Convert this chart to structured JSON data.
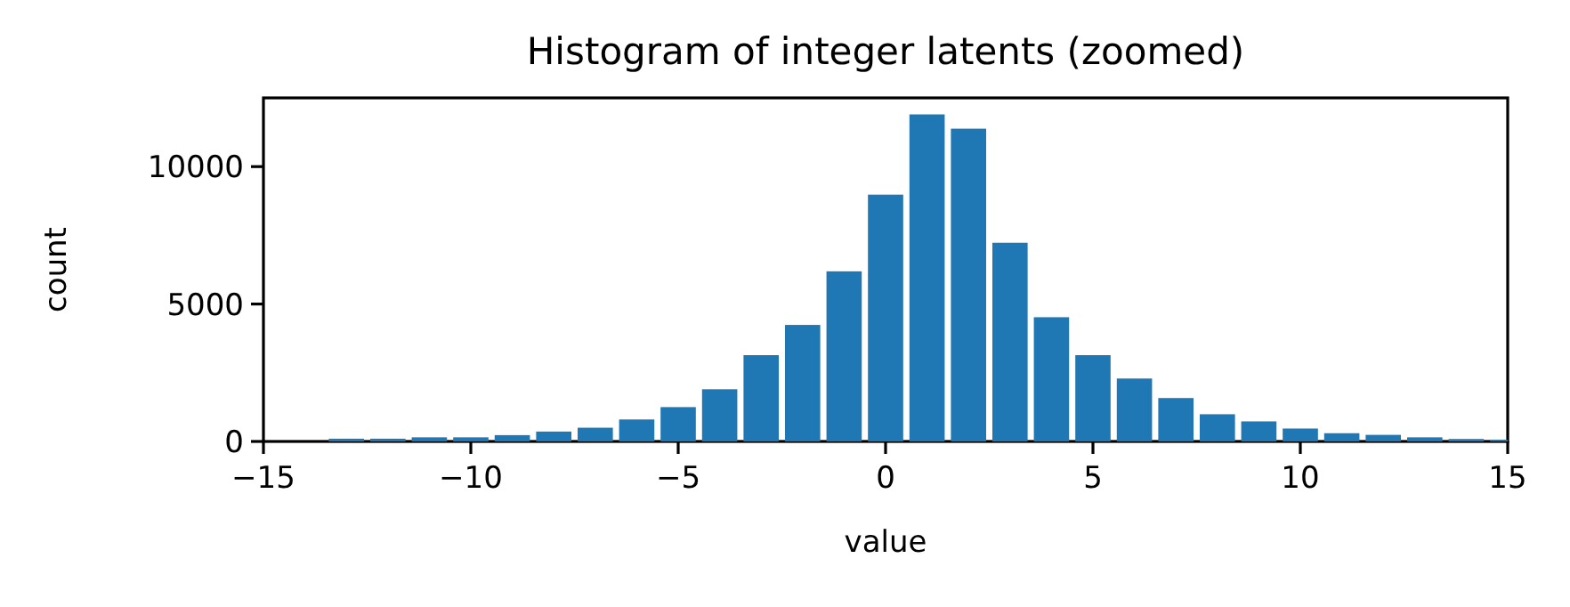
{
  "chart_data": {
    "type": "bar",
    "title": "Histogram of integer latents (zoomed)",
    "xlabel": "value",
    "ylabel": "count",
    "x": [
      -13,
      -12,
      -11,
      -10,
      -9,
      -8,
      -7,
      -6,
      -5,
      -4,
      -3,
      -2,
      -1,
      0,
      1,
      2,
      3,
      4,
      5,
      6,
      7,
      8,
      9,
      10,
      11,
      12,
      13,
      14,
      15
    ],
    "values": [
      100,
      100,
      150,
      150,
      230,
      360,
      500,
      800,
      1250,
      1900,
      3140,
      4240,
      6190,
      8980,
      11900,
      11380,
      7230,
      4520,
      3140,
      2290,
      1580,
      990,
      730,
      470,
      300,
      240,
      150,
      90,
      60
    ],
    "color": "#1f77b4",
    "xlim": [
      -15,
      15
    ],
    "xticks": [
      {
        "value": -15,
        "label": "−15"
      },
      {
        "value": -10,
        "label": "−10"
      },
      {
        "value": -5,
        "label": "−5"
      },
      0,
      5,
      10,
      15
    ],
    "ylim": [
      0,
      12500
    ],
    "yticks": [
      0,
      5000,
      10000
    ],
    "grid": false
  }
}
